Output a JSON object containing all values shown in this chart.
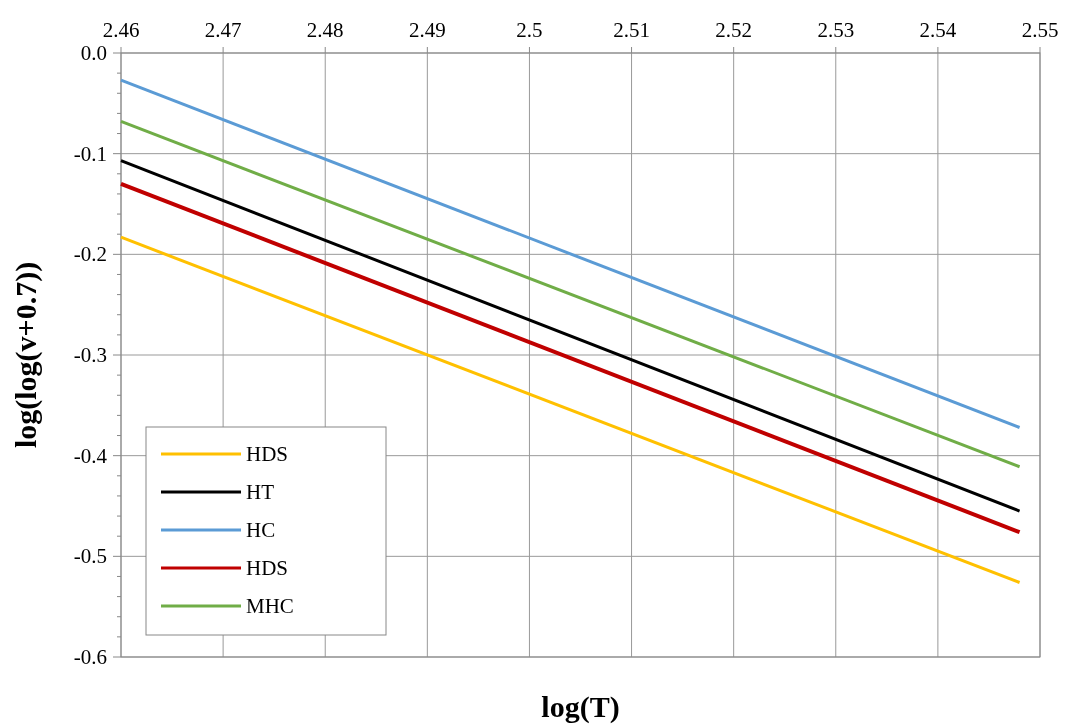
{
  "chart_data": {
    "type": "line",
    "xlabel": "log(T)",
    "ylabel": "log(log(v+0.7))",
    "xlim": [
      2.46,
      2.55
    ],
    "xticks": [
      2.46,
      2.47,
      2.48,
      2.49,
      2.5,
      2.51,
      2.52,
      2.53,
      2.54,
      2.55
    ],
    "ylim": [
      -0.6,
      0
    ],
    "yticks": [
      {
        "value": 0,
        "label": "0.0"
      },
      -0.1,
      -0.2,
      -0.3,
      -0.4,
      -0.5,
      -0.6
    ],
    "grid": true,
    "legend": "bottom left",
    "line_style": "solid",
    "x": [
      2.46,
      2.548
    ],
    "series": [
      {
        "name": "HDS",
        "color": "#ffc000",
        "values": [
          -0.183,
          -0.526
        ]
      },
      {
        "name": "HT",
        "color": "#000000",
        "values": [
          -0.107,
          -0.455
        ]
      },
      {
        "name": "HC",
        "color": "#5b9bd5",
        "values": [
          -0.027,
          -0.372
        ]
      },
      {
        "name": "HDS",
        "color": "#c00000",
        "values": [
          -0.13,
          -0.476
        ]
      },
      {
        "name": "MHC",
        "color": "#70ad47",
        "values": [
          -0.068,
          -0.411
        ]
      }
    ]
  }
}
